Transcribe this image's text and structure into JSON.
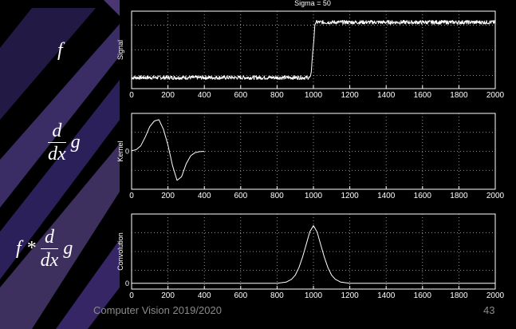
{
  "slide": {
    "plot_title": "Sigma = 50",
    "eq_f": "f",
    "eq_kernel": {
      "num": "d",
      "den": "dx",
      "rhs": "g"
    },
    "eq_conv": {
      "lhs": "f *",
      "num": "d",
      "den": "dx",
      "rhs": "g"
    },
    "footer_left": "Computer Vision 2019/2020",
    "footer_right": "43"
  },
  "chart_data": [
    {
      "type": "line",
      "name": "signal",
      "ylabel": "Signal",
      "xlim": [
        0,
        2000
      ],
      "ylim": [
        -0.2,
        1.2
      ],
      "x_ticks": [
        "0",
        "200",
        "400",
        "600",
        "800",
        "1000",
        "1200",
        "1400",
        "1600",
        "1800",
        "2000"
      ],
      "y_ticks": [],
      "grid": true,
      "series": [
        {
          "x": [
            0,
            985,
            1000,
            1010,
            2000
          ],
          "y": [
            0,
            0,
            0.5,
            1,
            1
          ]
        }
      ]
    },
    {
      "type": "line",
      "name": "kernel",
      "ylabel": "Kernel",
      "xlim": [
        0,
        2000
      ],
      "ylim": [
        -1.2,
        1.2
      ],
      "x_ticks": [
        "0",
        "200",
        "400",
        "600",
        "800",
        "1000",
        "1200",
        "1400",
        "1600",
        "1800",
        "2000"
      ],
      "y_ticks": [
        "0"
      ],
      "grid": true,
      "series": [
        {
          "x": [
            0,
            25,
            50,
            75,
            100,
            125,
            150,
            175,
            200,
            225,
            250,
            275,
            300,
            325,
            350,
            375,
            400
          ],
          "y": [
            0.02,
            0.05,
            0.17,
            0.45,
            0.78,
            0.96,
            1.0,
            0.7,
            0.2,
            -0.45,
            -0.92,
            -0.8,
            -0.4,
            -0.14,
            -0.04,
            -0.01,
            0
          ]
        }
      ]
    },
    {
      "type": "line",
      "name": "convolution",
      "ylabel": "Convolution",
      "xlim": [
        0,
        2000
      ],
      "ylim": [
        -0.1,
        1.2
      ],
      "x_ticks": [
        "0",
        "200",
        "400",
        "600",
        "800",
        "1000",
        "1200",
        "1400",
        "1600",
        "1800",
        "2000"
      ],
      "y_ticks": [
        "0"
      ],
      "grid": true,
      "series": [
        {
          "x": [
            0,
            800,
            850,
            880,
            900,
            920,
            940,
            960,
            980,
            1000,
            1020,
            1040,
            1060,
            1080,
            1100,
            1120,
            1150,
            1200,
            2000
          ],
          "y": [
            0,
            0,
            0.02,
            0.07,
            0.14,
            0.27,
            0.45,
            0.67,
            0.89,
            1.0,
            0.89,
            0.67,
            0.45,
            0.27,
            0.14,
            0.07,
            0.02,
            0,
            0
          ]
        }
      ]
    }
  ]
}
